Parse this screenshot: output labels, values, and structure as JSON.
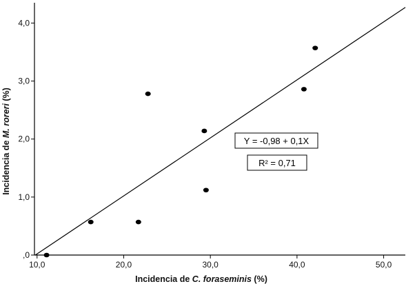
{
  "chart_data": {
    "type": "scatter",
    "title": "",
    "xlabel_prefix": "Incidencia de ",
    "xlabel_italic": "C. foraseminis",
    "xlabel_suffix": " (%)",
    "ylabel_prefix": "Incidencia de ",
    "ylabel_italic": "M. roreri",
    "ylabel_suffix": " (%)",
    "xlim": [
      9.7,
      52.5
    ],
    "ylim": [
      0,
      4.35
    ],
    "x_ticks": [
      {
        "value": 10,
        "label": "10,0"
      },
      {
        "value": 20,
        "label": "20,0"
      },
      {
        "value": 30,
        "label": "30,0"
      },
      {
        "value": 40,
        "label": "40,0"
      },
      {
        "value": 50,
        "label": "50,0"
      }
    ],
    "y_ticks": [
      {
        "value": 0,
        "label": ",0"
      },
      {
        "value": 1,
        "label": "1,0"
      },
      {
        "value": 2,
        "label": "2,0"
      },
      {
        "value": 3,
        "label": "3,0"
      },
      {
        "value": 4,
        "label": "4,0"
      }
    ],
    "points": [
      {
        "x": 11.1,
        "y": 0.0
      },
      {
        "x": 16.2,
        "y": 0.57
      },
      {
        "x": 21.7,
        "y": 0.57
      },
      {
        "x": 22.8,
        "y": 2.78
      },
      {
        "x": 29.3,
        "y": 2.14
      },
      {
        "x": 29.5,
        "y": 1.12
      },
      {
        "x": 40.8,
        "y": 2.86
      },
      {
        "x": 42.1,
        "y": 3.57
      }
    ],
    "regression": {
      "intercept": -0.98,
      "slope": 0.1,
      "x_start": 9.8,
      "x_end": 52.5,
      "equation_label": "Y = -0,98 + 0,1X",
      "r2_label": "R² = 0,71"
    },
    "grid": false,
    "legend": "none"
  }
}
